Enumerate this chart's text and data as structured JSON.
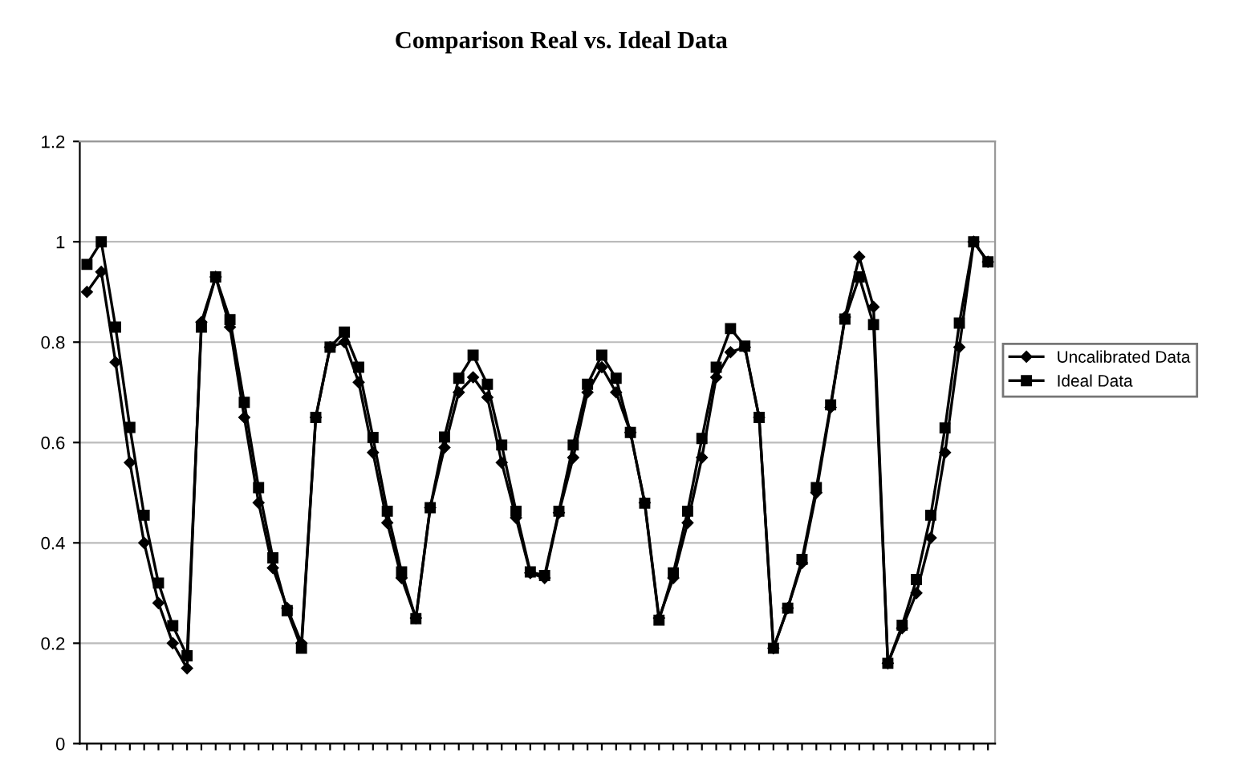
{
  "chart_data": {
    "type": "line",
    "title": "Comparison Real vs. Ideal Data",
    "categories": [
      null,
      null,
      null,
      null,
      null,
      null,
      null,
      null,
      null,
      null,
      null,
      null,
      null,
      null,
      null,
      null,
      null,
      null,
      null,
      null,
      null,
      null,
      null,
      null,
      null,
      null,
      null,
      null,
      null,
      null,
      null,
      null,
      null,
      null,
      null,
      null,
      null,
      null,
      null,
      null,
      null,
      null,
      null,
      null,
      null,
      null,
      null,
      null,
      null,
      null,
      null,
      null,
      null,
      null,
      null,
      null,
      null,
      null,
      null,
      null,
      null,
      null,
      null,
      null
    ],
    "series": [
      {
        "name": "Uncalibrated Data",
        "color": "#000000",
        "marker": "diamond",
        "values": [
          0.9,
          0.94,
          0.76,
          0.56,
          0.4,
          0.28,
          0.2,
          0.15,
          0.84,
          0.93,
          0.83,
          0.65,
          0.48,
          0.35,
          0.27,
          0.2,
          0.65,
          0.79,
          0.8,
          0.72,
          0.58,
          0.44,
          0.33,
          0.25,
          0.47,
          0.59,
          0.7,
          0.73,
          0.69,
          0.56,
          0.45,
          0.34,
          0.33,
          0.46,
          0.57,
          0.7,
          0.75,
          0.7,
          0.62,
          0.48,
          0.25,
          0.33,
          0.44,
          0.57,
          0.73,
          0.78,
          0.79,
          0.65,
          0.19,
          0.27,
          0.36,
          0.5,
          0.67,
          0.85,
          0.97,
          0.87,
          0.16,
          0.23,
          0.3,
          0.41,
          0.58,
          0.79,
          1.0,
          0.96
        ]
      },
      {
        "name": "Ideal Data",
        "color": "#000000",
        "marker": "square",
        "values": [
          0.955,
          1.0,
          0.83,
          0.63,
          0.455,
          0.32,
          0.235,
          0.175,
          0.83,
          0.93,
          0.845,
          0.68,
          0.51,
          0.37,
          0.265,
          0.19,
          0.65,
          0.79,
          0.82,
          0.75,
          0.61,
          0.463,
          0.342,
          0.249,
          0.47,
          0.611,
          0.728,
          0.774,
          0.716,
          0.595,
          0.463,
          0.342,
          0.335,
          0.463,
          0.595,
          0.716,
          0.774,
          0.728,
          0.62,
          0.479,
          0.246,
          0.34,
          0.463,
          0.608,
          0.75,
          0.827,
          0.792,
          0.65,
          0.19,
          0.27,
          0.367,
          0.51,
          0.675,
          0.846,
          0.93,
          0.835,
          0.16,
          0.236,
          0.327,
          0.455,
          0.629,
          0.838,
          1.0,
          0.96
        ]
      }
    ],
    "ylim": [
      0,
      1.2
    ],
    "yticks": [
      0,
      0.2,
      0.4,
      0.6,
      0.8,
      1,
      1.2
    ],
    "grid": "y",
    "legend": "right",
    "line_style": "solid"
  }
}
